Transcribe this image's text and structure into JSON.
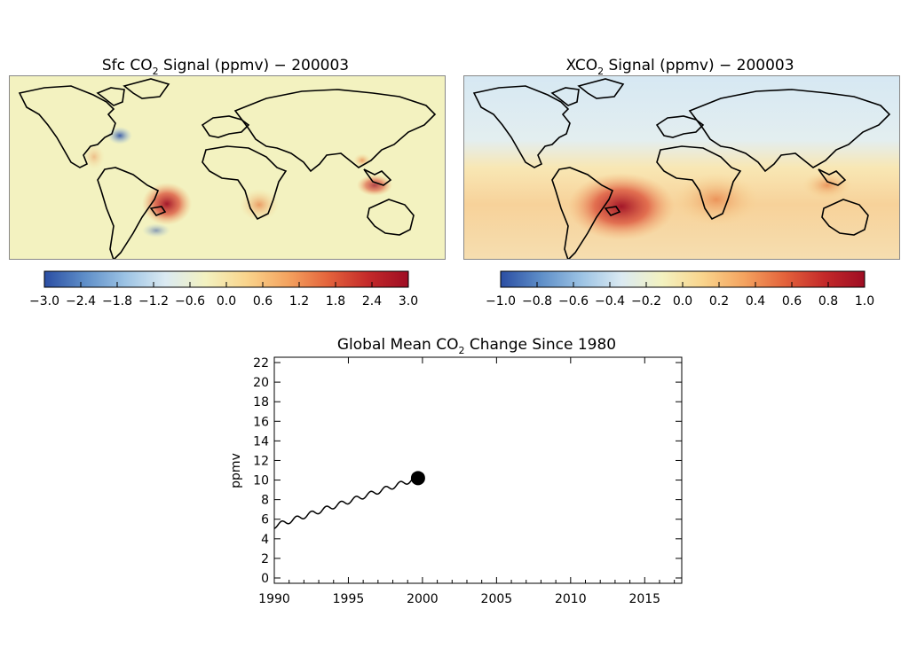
{
  "maps": [
    {
      "title_main": "Sfc CO",
      "title_sub": "2",
      "title_rest": " Signal (ppmv) − 200003",
      "colorbar_ticks": [
        "−3.0",
        "−2.4",
        "−1.8",
        "−1.2",
        "−0.6",
        "0.0",
        "0.6",
        "1.2",
        "1.8",
        "2.4",
        "3.0"
      ],
      "colorbar_range": [
        -3.0,
        3.0
      ]
    },
    {
      "title_main": "XCO",
      "title_sub": "2",
      "title_rest": " Signal (ppmv) − 200003",
      "colorbar_ticks": [
        "−1.0",
        "−0.8",
        "−0.6",
        "−0.4",
        "−0.2",
        "0.0",
        "0.2",
        "0.4",
        "0.6",
        "0.8",
        "1.0"
      ],
      "colorbar_range": [
        -1.0,
        1.0
      ]
    }
  ],
  "colors": {
    "scale": [
      "#2b4ea3",
      "#5e8ec8",
      "#9cc3e4",
      "#dbeaf2",
      "#f3f2c0",
      "#f9d48c",
      "#f4a460",
      "#e4643c",
      "#c42a2a",
      "#9e0d23"
    ],
    "land_outline": "#000000",
    "line": "#000000"
  },
  "chart_data": {
    "type": "line",
    "title_main": "Global Mean CO",
    "title_sub": "2",
    "title_rest": " Change Since 1980",
    "xlabel": "",
    "ylabel": "ppmv",
    "xlim": [
      1990,
      2017.5
    ],
    "ylim": [
      0,
      22
    ],
    "x_ticks": [
      "1990",
      "1995",
      "2000",
      "2005",
      "2010",
      "2015"
    ],
    "y_ticks": [
      "0",
      "2",
      "4",
      "6",
      "8",
      "10",
      "12",
      "14",
      "16",
      "18",
      "20",
      "22"
    ],
    "start": {
      "x": 1990.0,
      "y": 5.3
    },
    "end": {
      "x": 1999.7,
      "y": 10.2
    },
    "seasonal_amplitude": 0.25,
    "marker": {
      "x": 1999.7,
      "y": 10.2
    }
  }
}
